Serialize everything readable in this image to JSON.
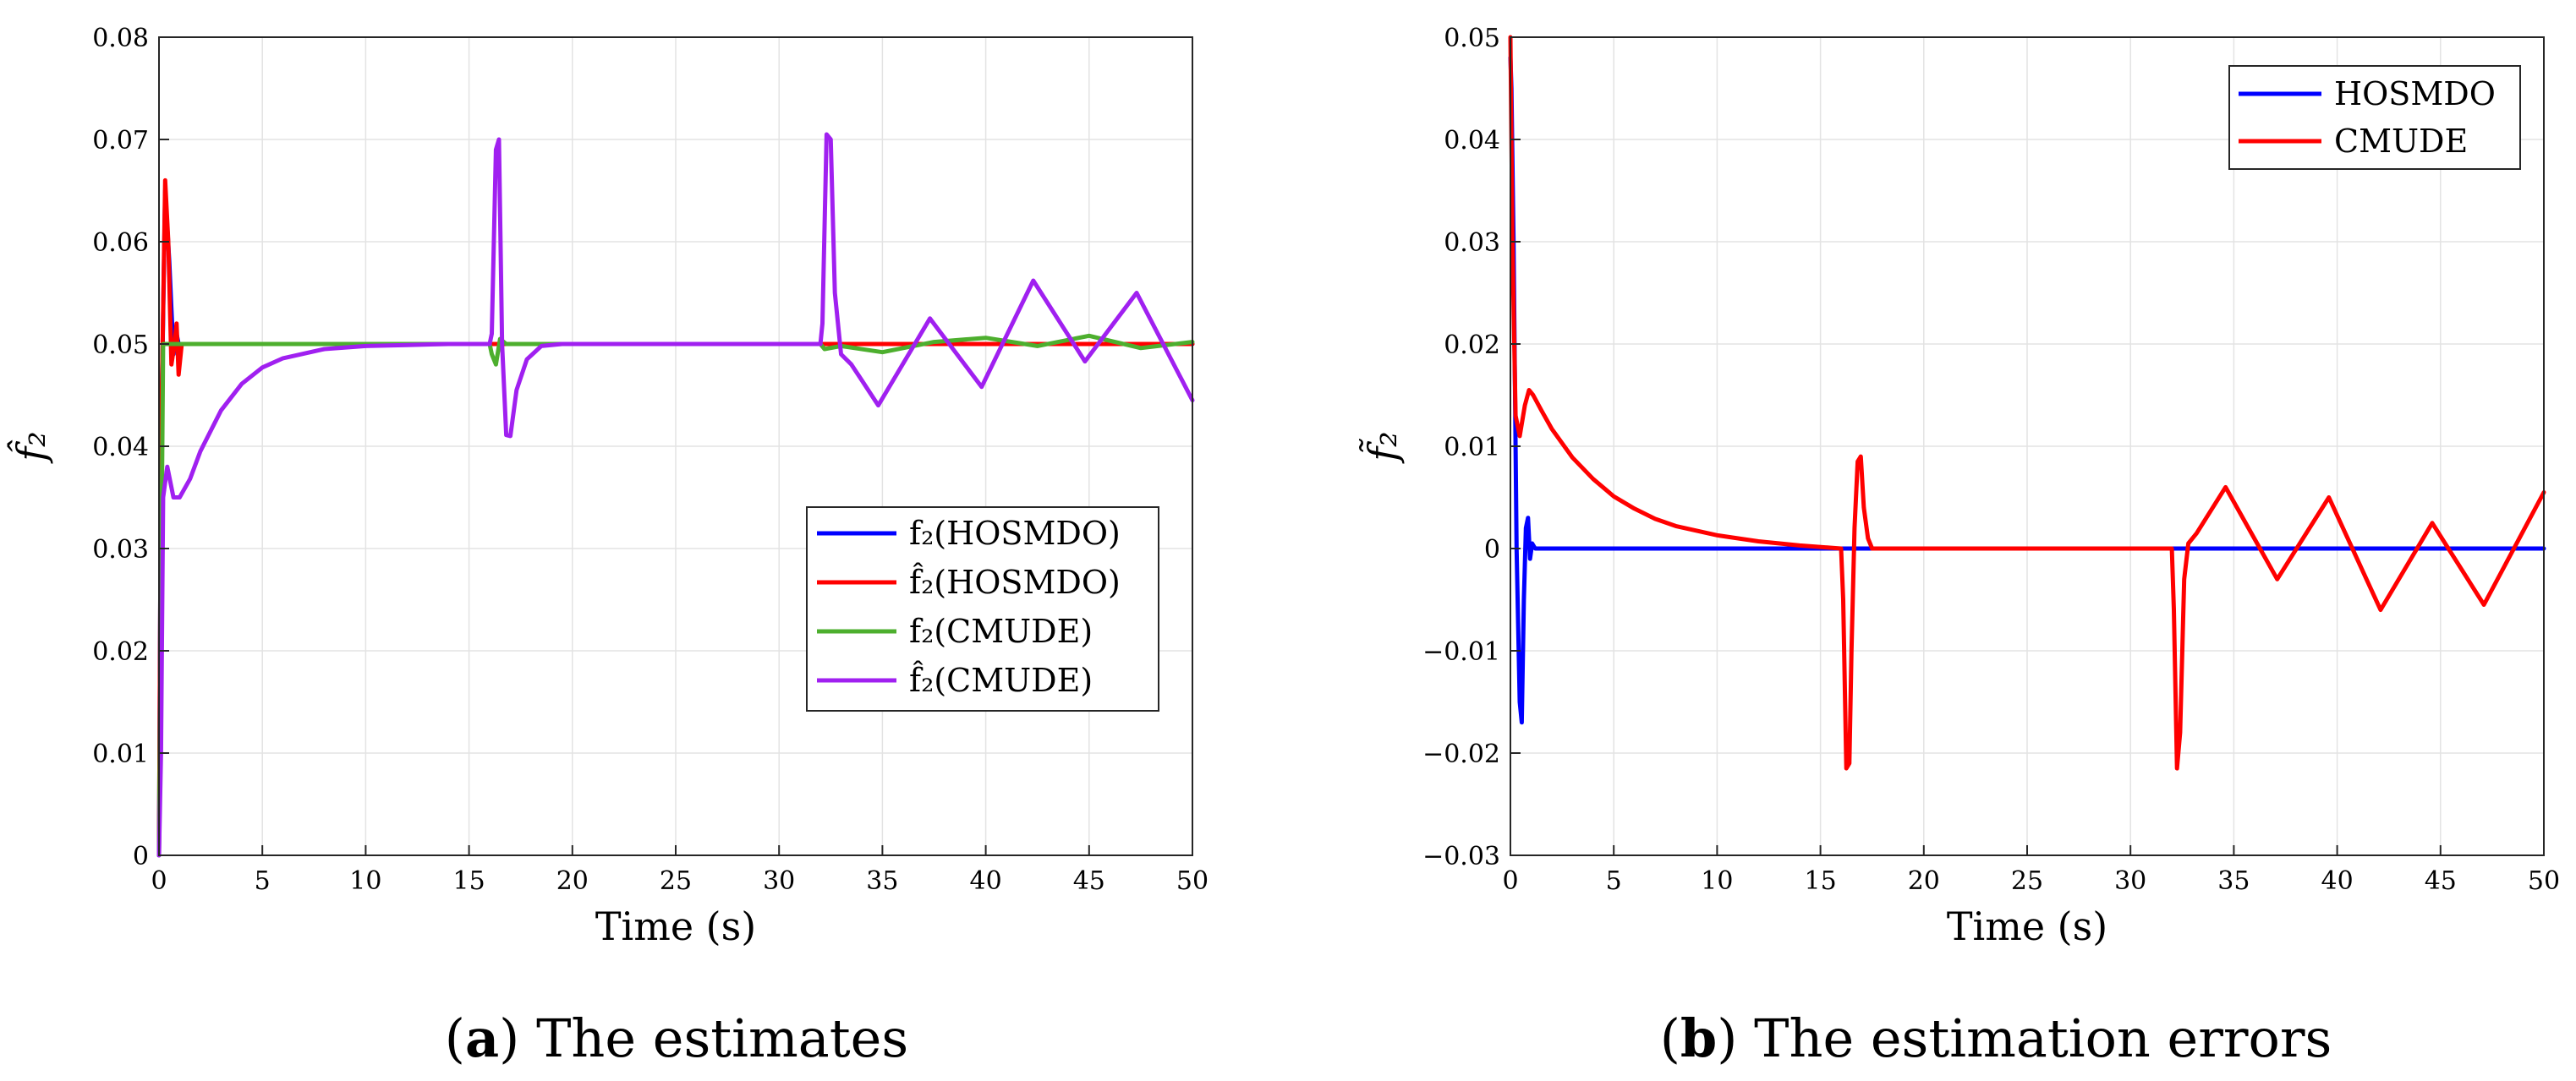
{
  "chart_data": [
    {
      "id": "a",
      "type": "line",
      "caption_letter": "a",
      "caption_text": "The estimates",
      "xlabel": "Time (s)",
      "ylabel": "f̂₂",
      "xlim": [
        0,
        50
      ],
      "ylim": [
        0,
        0.08
      ],
      "xticks": [
        0,
        5,
        10,
        15,
        20,
        25,
        30,
        35,
        40,
        45,
        50
      ],
      "xtick_labels": [
        "0",
        "5",
        "10",
        "15",
        "20",
        "25",
        "30",
        "35",
        "40",
        "45",
        "50"
      ],
      "yticks": [
        0,
        0.01,
        0.02,
        0.03,
        0.04,
        0.05,
        0.06,
        0.07,
        0.08
      ],
      "ytick_labels": [
        "0",
        "0.01",
        "0.02",
        "0.03",
        "0.04",
        "0.05",
        "0.06",
        "0.07",
        "0.08"
      ],
      "grid": true,
      "legend_position": "center-right",
      "series": [
        {
          "name": "f₂(HOSMDO)",
          "color": "#0000ff",
          "x": [
            0,
            0.1,
            0.3,
            0.5,
            0.7,
            0.85,
            0.95,
            1.2,
            50
          ],
          "y": [
            0,
            0.04,
            0.065,
            0.058,
            0.049,
            0.051,
            0.05,
            0.05,
            0.05
          ]
        },
        {
          "name": "f̂₂(HOSMDO)",
          "color": "#ff0000",
          "x": [
            0,
            0.1,
            0.3,
            0.45,
            0.6,
            0.75,
            0.85,
            0.95,
            1.1,
            50
          ],
          "y": [
            0,
            0.04,
            0.066,
            0.06,
            0.048,
            0.05,
            0.052,
            0.047,
            0.05,
            0.05
          ]
        },
        {
          "name": "f₂(CMUDE)",
          "color": "#4daf2e",
          "x": [
            0,
            0.2,
            0.5,
            16.0,
            16.1,
            16.3,
            16.5,
            16.8,
            32.0,
            32.2,
            33,
            35,
            37.5,
            40,
            42.5,
            45,
            47.5,
            50
          ],
          "y": [
            0,
            0.05,
            0.05,
            0.05,
            0.049,
            0.048,
            0.0505,
            0.05,
            0.05,
            0.0495,
            0.0498,
            0.0492,
            0.0502,
            0.0506,
            0.0498,
            0.0508,
            0.0496,
            0.0502
          ]
        },
        {
          "name": "f̂₂(CMUDE)",
          "color": "#a020f0",
          "x": [
            0,
            0.1,
            0.2,
            0.4,
            0.7,
            1.0,
            1.5,
            2,
            3,
            4,
            5,
            6,
            8,
            10,
            12,
            14,
            16.0,
            16.1,
            16.3,
            16.45,
            16.6,
            16.8,
            17.0,
            17.3,
            17.8,
            18.5,
            19.5,
            20,
            32.0,
            32.1,
            32.3,
            32.5,
            32.7,
            33.0,
            33.5,
            34.8,
            37.3,
            39.8,
            42.3,
            44.8,
            47.3,
            50
          ],
          "y": [
            0,
            0.01,
            0.035,
            0.038,
            0.035,
            0.035,
            0.0368,
            0.0395,
            0.0435,
            0.0461,
            0.0477,
            0.0486,
            0.0495,
            0.0498,
            0.0499,
            0.05,
            0.05,
            0.051,
            0.069,
            0.07,
            0.05,
            0.0411,
            0.041,
            0.0455,
            0.0485,
            0.0498,
            0.05,
            0.05,
            0.05,
            0.052,
            0.0705,
            0.07,
            0.055,
            0.049,
            0.048,
            0.044,
            0.0525,
            0.0458,
            0.0562,
            0.0483,
            0.055,
            0.0445
          ]
        }
      ]
    },
    {
      "id": "b",
      "type": "line",
      "caption_letter": "b",
      "caption_text": "The estimation errors",
      "xlabel": "Time (s)",
      "ylabel": "f̃₂",
      "xlim": [
        0,
        50
      ],
      "ylim": [
        -0.03,
        0.05
      ],
      "xticks": [
        0,
        5,
        10,
        15,
        20,
        25,
        30,
        35,
        40,
        45,
        50
      ],
      "xtick_labels": [
        "0",
        "5",
        "10",
        "15",
        "20",
        "25",
        "30",
        "35",
        "40",
        "45",
        "50"
      ],
      "yticks": [
        -0.03,
        -0.02,
        -0.01,
        0,
        0.01,
        0.02,
        0.03,
        0.04,
        0.05
      ],
      "ytick_labels": [
        "−0.03",
        "−0.02",
        "−0.01",
        "0",
        "0.01",
        "0.02",
        "0.03",
        "0.04",
        "0.05"
      ],
      "grid": true,
      "legend_position": "top-right",
      "series": [
        {
          "name": "HOSMDO",
          "color": "#0000ff",
          "x": [
            0,
            0.05,
            0.15,
            0.3,
            0.45,
            0.55,
            0.65,
            0.75,
            0.85,
            0.95,
            1.05,
            1.2,
            1.5,
            50
          ],
          "y": [
            0.048,
            0.045,
            0.03,
            0.0,
            -0.015,
            -0.017,
            -0.005,
            0.002,
            0.003,
            -0.001,
            0.0005,
            0.0,
            0.0,
            0.0
          ]
        },
        {
          "name": "CMUDE",
          "color": "#ff0000",
          "x": [
            0,
            0.1,
            0.25,
            0.45,
            0.7,
            0.9,
            1.1,
            1.5,
            2,
            3,
            4,
            5,
            6,
            7,
            8,
            10,
            12,
            14,
            16.0,
            16.1,
            16.25,
            16.4,
            16.5,
            16.65,
            16.8,
            16.95,
            17.1,
            17.3,
            17.5,
            32.0,
            32.1,
            32.25,
            32.4,
            32.6,
            32.8,
            33.2,
            34.6,
            37.1,
            39.6,
            42.1,
            44.6,
            47.1,
            50
          ],
          "y": [
            0.05,
            0.03,
            0.013,
            0.011,
            0.014,
            0.0155,
            0.015,
            0.0135,
            0.0117,
            0.0089,
            0.0068,
            0.0051,
            0.0039,
            0.0029,
            0.0022,
            0.0013,
            0.0007,
            0.0003,
            0.0,
            -0.005,
            -0.0215,
            -0.021,
            -0.01,
            0.002,
            0.0085,
            0.009,
            0.004,
            0.001,
            0.0,
            0.0,
            -0.006,
            -0.0215,
            -0.018,
            -0.003,
            0.0005,
            0.0015,
            0.006,
            -0.003,
            0.005,
            -0.006,
            0.0025,
            -0.0055,
            0.0055
          ]
        }
      ]
    }
  ]
}
